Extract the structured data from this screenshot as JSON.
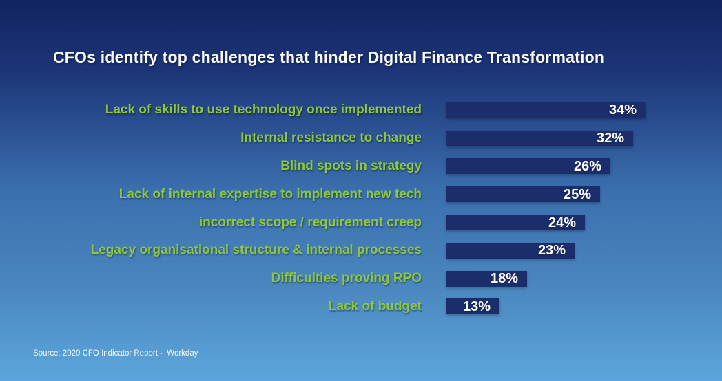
{
  "title": "CFOs identify top challenges that hinder Digital Finance Transformation",
  "source": "Source: 2020 CFO Indicator Report -  Workday",
  "colors": {
    "background_top": "#122462",
    "background_upper": "#1c3476",
    "background_mid": "#3a6fae",
    "background_lower": "#4a85bd",
    "background_bottom": "#5ba6dc",
    "bar": "#1b2d6a",
    "category_label": "#8dc63f",
    "title_text": "#ffffff",
    "value_text": "#ffffff",
    "source_text": "#ffffff"
  },
  "chart_data": {
    "type": "bar",
    "orientation": "horizontal",
    "title": "CFOs identify top challenges that hinder Digital Finance Transformation",
    "categories": [
      "Lack of skills to use technology once implemented",
      "Internal resistance to change",
      "Blind spots in strategy",
      "Lack of internal expertise to implement new tech",
      "incorrect scope / requirement creep",
      "Legacy organisational structure & internal processes",
      "Difficulties proving RPO",
      "Lack of budget"
    ],
    "values": [
      34,
      32,
      26,
      25,
      24,
      23,
      18,
      13
    ],
    "unit": "%",
    "value_labels": [
      "34%",
      "32%",
      "26%",
      "25%",
      "24%",
      "23%",
      "18%",
      "13%"
    ],
    "xlim": [
      0,
      34
    ],
    "grid": false,
    "legend": false,
    "bar_pixel_widths": [
      289,
      271,
      238,
      223,
      201,
      186,
      117,
      77
    ]
  }
}
